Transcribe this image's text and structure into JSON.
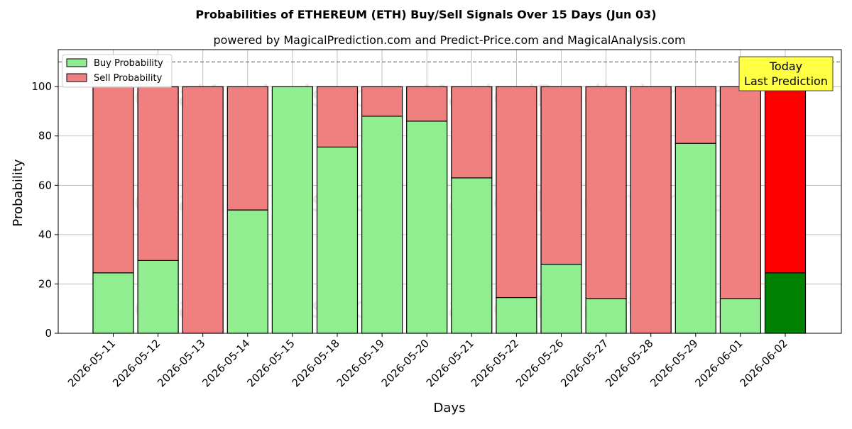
{
  "chart_data": {
    "type": "bar",
    "stacked": true,
    "title": "Probabilities of ETHEREUM (ETH) Buy/Sell Signals Over 15 Days (Jun 03)",
    "subtitle": "powered by MagicalPrediction.com and Predict-Price.com and MagicalAnalysis.com",
    "xlabel": "Days",
    "ylabel": "Probability",
    "ylim": [
      0,
      115
    ],
    "yticks": [
      0,
      20,
      40,
      60,
      80,
      100
    ],
    "grid": true,
    "legend_position": "top-left",
    "reference_line": 110,
    "categories": [
      "2026-05-11",
      "2026-05-12",
      "2026-05-13",
      "2026-05-14",
      "2026-05-15",
      "2026-05-18",
      "2026-05-19",
      "2026-05-20",
      "2026-05-21",
      "2026-05-22",
      "2026-05-26",
      "2026-05-27",
      "2026-05-28",
      "2026-05-29",
      "2026-06-01",
      "2026-06-02"
    ],
    "series": [
      {
        "name": "Buy Probability",
        "color": "#90ee90",
        "highlight_color": "#008000",
        "values": [
          24.5,
          29.5,
          0,
          50,
          100,
          75.5,
          88,
          86,
          63,
          14.5,
          28,
          14,
          0,
          77,
          14,
          24.5
        ]
      },
      {
        "name": "Sell Probability",
        "color": "#f08080",
        "highlight_color": "#ff0000",
        "values": [
          75.5,
          70.5,
          100,
          50,
          0,
          24.5,
          12,
          14,
          37,
          85.5,
          72,
          86,
          100,
          23,
          86,
          75.5
        ]
      }
    ],
    "highlight_index": 15,
    "annotation": {
      "lines": [
        "Today",
        "Last Prediction"
      ],
      "color": "#ffff44"
    },
    "watermarks": [
      "MagicalAnalysis.com",
      "MagicalPrediction.com"
    ]
  }
}
